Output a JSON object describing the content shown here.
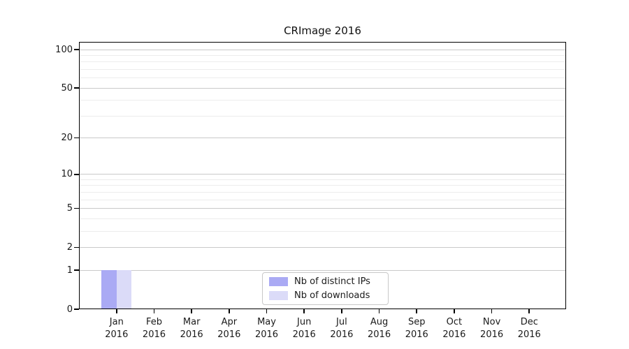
{
  "chart_data": {
    "type": "bar",
    "title": "CRImage 2016",
    "categories": [
      "Jan",
      "Feb",
      "Mar",
      "Apr",
      "May",
      "Jun",
      "Jul",
      "Aug",
      "Sep",
      "Oct",
      "Nov",
      "Dec"
    ],
    "category_year": "2016",
    "series": [
      {
        "name": "Nb of distinct IPs",
        "color": "#aaaaf4",
        "values": [
          1,
          0,
          0,
          0,
          0,
          0,
          0,
          0,
          0,
          0,
          0,
          0
        ]
      },
      {
        "name": "Nb of downloads",
        "color": "#dbdbf8",
        "values": [
          1,
          0,
          0,
          0,
          0,
          0,
          0,
          0,
          0,
          0,
          0,
          0
        ]
      }
    ],
    "xlabel": "",
    "ylabel": "",
    "y_axis": {
      "scale": "log10(1+x)",
      "ylim": [
        0,
        100
      ],
      "ticks": [
        0,
        1,
        2,
        5,
        10,
        20,
        50,
        100
      ],
      "minor_ticks": [
        3,
        4,
        6,
        7,
        8,
        9,
        30,
        40,
        60,
        70,
        80,
        90
      ]
    },
    "grid": {
      "visible": true,
      "major_color": "#c9c9c9",
      "minor_color": "#ececec"
    },
    "legend": {
      "position": "lower center inside plot"
    },
    "colors": {
      "spine": "#000000",
      "text": "#1a1a1a",
      "background": "#ffffff"
    }
  }
}
